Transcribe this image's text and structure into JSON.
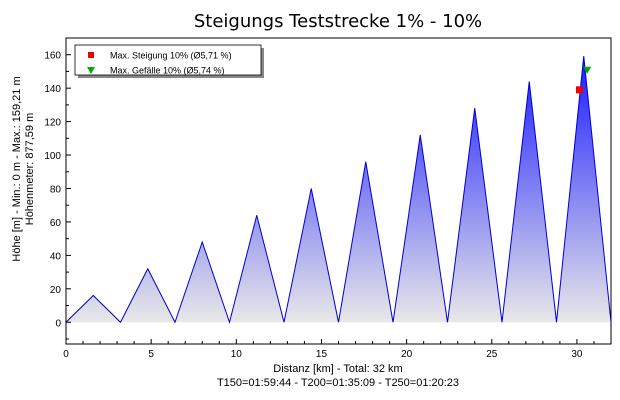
{
  "chart_data": {
    "type": "area",
    "title": "Steigungs Teststrecke 1% - 10%",
    "xlabel": "Distanz [km] - Total: 32 km",
    "xlabel2": "T150=01:59:44 - T200=01:35:09 - T250=01:20:23",
    "ylabel": "Höhe [m] - Min.: 0 m - Max.: 159,21 m",
    "ylabel2": "Höhenmeter: 877,59 m",
    "xlim": [
      0,
      32
    ],
    "ylim": [
      -13,
      170
    ],
    "xticks": [
      0,
      5,
      10,
      15,
      20,
      25,
      30
    ],
    "yticks": [
      0,
      20,
      40,
      60,
      80,
      100,
      120,
      140,
      160
    ],
    "grid": false,
    "colors": {
      "fill_top": "#1a1aff",
      "fill_bottom": "#e8e8e8",
      "line": "#0000cc"
    },
    "x": [
      0,
      1.6,
      3.2,
      4.8,
      6.4,
      8.0,
      9.6,
      11.2,
      12.8,
      14.4,
      16.0,
      17.6,
      19.2,
      20.8,
      22.4,
      24.0,
      25.6,
      27.2,
      28.8,
      30.4,
      32.0
    ],
    "y": [
      0,
      16,
      0,
      32,
      0,
      48,
      0,
      64,
      0,
      80,
      0,
      96,
      0,
      112,
      0,
      128,
      0,
      144,
      0,
      159.21,
      0
    ],
    "legend": {
      "position": "top-left",
      "entries": [
        {
          "label": "Max. Steigung 10% (Ø5,71 %)",
          "color": "#ee0000",
          "marker": "square",
          "x": 30.15,
          "y": 139
        },
        {
          "label": "Max. Gefälle 10% (Ø5,74 %)",
          "color": "#00aa00",
          "marker": "triangle-down",
          "x": 30.6,
          "y": 151
        }
      ]
    }
  }
}
